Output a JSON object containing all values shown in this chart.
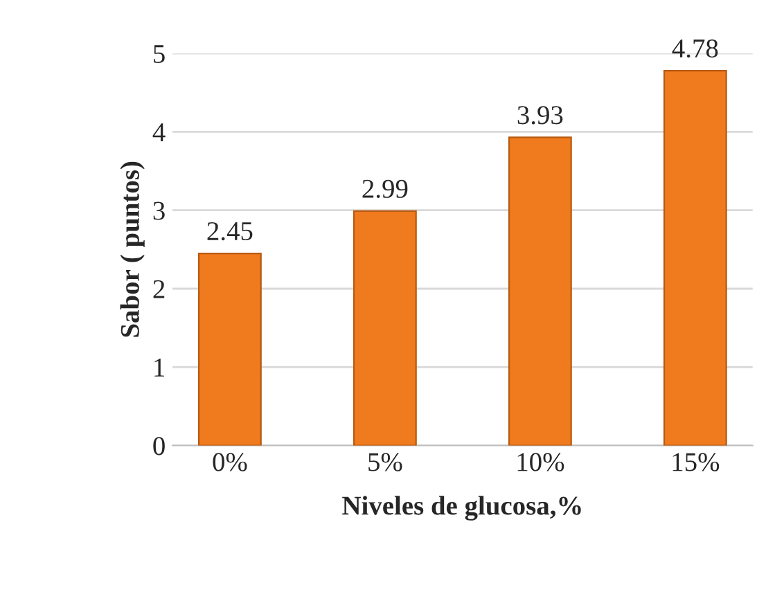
{
  "chart_data": {
    "type": "bar",
    "xlabel": "Niveles de glucosa,%",
    "ylabel": "Sabor ( puntos)",
    "categories": [
      "0%",
      "5%",
      "10%",
      "15%"
    ],
    "values": [
      2.45,
      2.99,
      3.93,
      4.78
    ],
    "color": "#f07a1e",
    "ylim": [
      0,
      5
    ],
    "yticks": [
      0,
      1,
      2,
      3,
      4,
      5
    ],
    "grid": "y",
    "data_labels": true
  }
}
